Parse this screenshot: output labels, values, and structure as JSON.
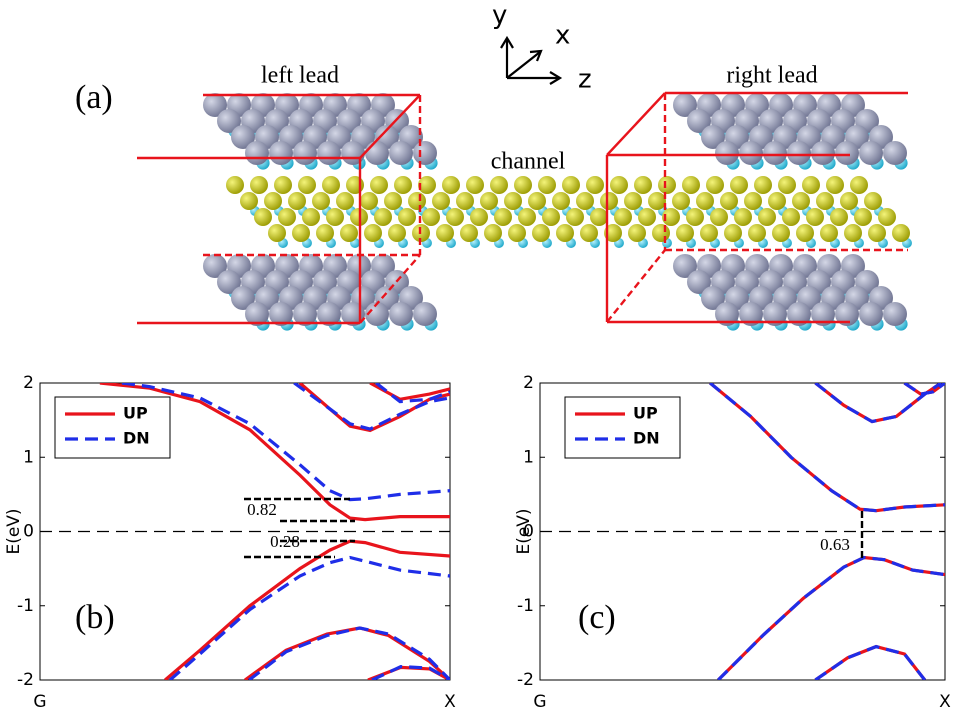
{
  "structure": {
    "panel_label": "(a)",
    "left": "left lead",
    "right": "right lead",
    "middle": "channel",
    "axes": [
      "y",
      "x",
      "z"
    ]
  },
  "chart_data": [
    {
      "type": "line",
      "panel_label": "(b)",
      "ylabel": "E(eV)",
      "xlim": [
        0,
        1
      ],
      "ylim": [
        -2,
        2
      ],
      "xticks": [
        {
          "value": 0,
          "label": "G"
        },
        {
          "value": 1,
          "label": "X"
        }
      ],
      "yticks": [
        -2,
        -1,
        0,
        1,
        2
      ],
      "zero_line": true,
      "legend": "upper left",
      "annotations": [
        "0.82",
        "0.28"
      ],
      "series": [
        {
          "name": "UP",
          "color": "#e8141c",
          "linestyle": "solid",
          "x": [
            0.146,
            0.268,
            0.39,
            0.512,
            0.634,
            0.707,
            0.756,
            0.793,
            0.878,
            1,
            null,
            0.305,
            0.39,
            0.512,
            0.634,
            0.707,
            0.756,
            0.793,
            0.878,
            1,
            null,
            0.634,
            0.707,
            0.756,
            0.805,
            0.878,
            0.95,
            1,
            null,
            0.805,
            0.878,
            0.95,
            1,
            null,
            0.5,
            0.6,
            0.7,
            0.78,
            0.85,
            0.95,
            1,
            null,
            0.8,
            0.88,
            0.95,
            1
          ],
          "values": [
            2.0,
            1.93,
            1.75,
            1.37,
            0.76,
            0.36,
            0.18,
            0.16,
            0.2,
            0.2,
            null,
            -2.0,
            -1.6,
            -1.0,
            -0.5,
            -0.25,
            -0.13,
            -0.15,
            -0.28,
            -0.33,
            null,
            2.0,
            1.65,
            1.42,
            1.36,
            1.55,
            1.78,
            1.85,
            null,
            2.0,
            1.78,
            1.85,
            1.92,
            null,
            -2.0,
            -1.6,
            -1.38,
            -1.3,
            -1.4,
            -1.75,
            -2.0,
            null,
            -2.0,
            -1.83,
            -1.85,
            -2.0
          ]
        },
        {
          "name": "DN",
          "color": "#1f2ee8",
          "linestyle": "dashed",
          "x": [
            0.2,
            0.268,
            0.39,
            0.512,
            0.634,
            0.707,
            0.756,
            0.793,
            0.878,
            1,
            null,
            0.317,
            0.39,
            0.512,
            0.634,
            0.707,
            0.756,
            0.793,
            0.878,
            1,
            null,
            0.62,
            0.7,
            0.756,
            0.805,
            0.878,
            0.95,
            1,
            null,
            0.82,
            0.878,
            0.95,
            1,
            null,
            0.51,
            0.6,
            0.7,
            0.78,
            0.85,
            0.95,
            1,
            null,
            0.81,
            0.88,
            0.95,
            1
          ],
          "values": [
            2.0,
            1.95,
            1.8,
            1.45,
            0.9,
            0.55,
            0.43,
            0.44,
            0.5,
            0.55,
            null,
            -2.0,
            -1.65,
            -1.05,
            -0.6,
            -0.42,
            -0.35,
            -0.4,
            -0.52,
            -0.6,
            null,
            2.0,
            1.68,
            1.45,
            1.38,
            1.58,
            1.75,
            1.8,
            null,
            2.0,
            1.75,
            1.78,
            1.88,
            null,
            -2.0,
            -1.62,
            -1.4,
            -1.3,
            -1.38,
            -1.72,
            -2.0,
            null,
            -2.0,
            -1.82,
            -1.84,
            -2.0
          ]
        }
      ]
    },
    {
      "type": "line",
      "panel_label": "(c)",
      "ylabel": "E(eV)",
      "xlim": [
        0,
        1
      ],
      "ylim": [
        -2,
        2
      ],
      "xticks": [
        {
          "value": 0,
          "label": "G"
        },
        {
          "value": 1,
          "label": "X"
        }
      ],
      "yticks": [
        -2,
        -1,
        0,
        1,
        2
      ],
      "zero_line": true,
      "legend": "upper left",
      "annotations": [
        "0.63"
      ],
      "series": [
        {
          "name": "UP",
          "color": "#e8141c",
          "linestyle": "solid",
          "x": [
            0.42,
            0.52,
            0.62,
            0.72,
            0.79,
            0.83,
            0.9,
            1,
            null,
            0.44,
            0.55,
            0.65,
            0.75,
            0.8,
            0.85,
            0.92,
            1,
            null,
            0.68,
            0.75,
            0.82,
            0.88,
            0.95,
            0.99,
            null,
            0.9,
            0.94,
            0.97,
            1,
            null,
            0.68,
            0.76,
            0.83,
            0.9,
            0.95
          ],
          "values": [
            2.0,
            1.55,
            1.0,
            0.55,
            0.3,
            0.28,
            0.33,
            0.36,
            null,
            -2.0,
            -1.4,
            -0.9,
            -0.48,
            -0.35,
            -0.38,
            -0.52,
            -0.58,
            null,
            2.0,
            1.7,
            1.48,
            1.55,
            1.85,
            2.0,
            null,
            2.0,
            1.85,
            1.88,
            2.0,
            null,
            -2.0,
            -1.7,
            -1.55,
            -1.65,
            -2.0
          ]
        },
        {
          "name": "DN",
          "color": "#1f2ee8",
          "linestyle": "dashed",
          "x": [
            0.42,
            0.52,
            0.62,
            0.72,
            0.79,
            0.83,
            0.9,
            1,
            null,
            0.44,
            0.55,
            0.65,
            0.75,
            0.8,
            0.85,
            0.92,
            1,
            null,
            0.68,
            0.75,
            0.82,
            0.88,
            0.95,
            0.99,
            null,
            0.9,
            0.94,
            0.97,
            1,
            null,
            0.68,
            0.76,
            0.83,
            0.9,
            0.95
          ],
          "values": [
            2.0,
            1.55,
            1.0,
            0.55,
            0.3,
            0.28,
            0.33,
            0.36,
            null,
            -2.0,
            -1.4,
            -0.9,
            -0.48,
            -0.35,
            -0.38,
            -0.52,
            -0.58,
            null,
            2.0,
            1.7,
            1.48,
            1.55,
            1.85,
            2.0,
            null,
            2.0,
            1.85,
            1.88,
            2.0,
            null,
            -2.0,
            -1.7,
            -1.55,
            -1.65,
            -2.0
          ]
        }
      ]
    }
  ]
}
